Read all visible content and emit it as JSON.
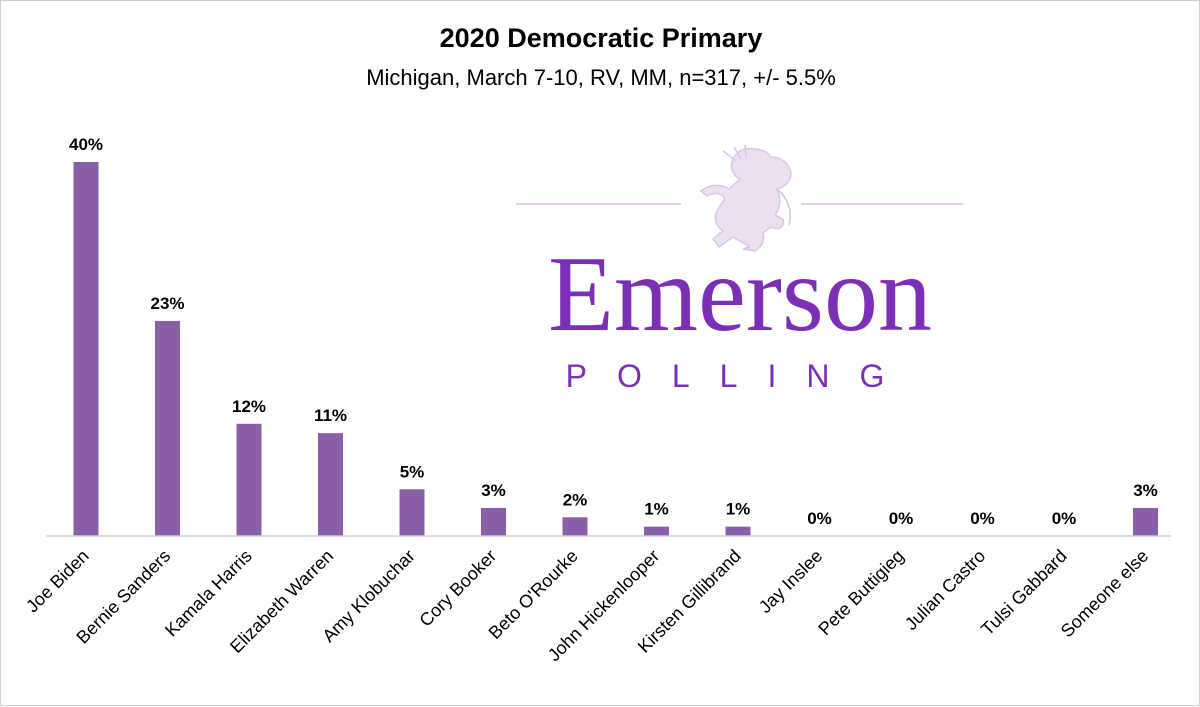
{
  "chart_data": {
    "type": "bar",
    "title": "2020 Democratic Primary",
    "subtitle": "Michigan, March 7-10, RV, MM, n=317, +/- 5.5%",
    "categories": [
      "Joe Biden",
      "Bernie Sanders",
      "Kamala Harris",
      "Elizabeth Warren",
      "Amy Klobuchar",
      "Cory Booker",
      "Beto O'Rourke",
      "John Hickenlooper",
      "Kirsten Gillibrand",
      "Jay Inslee",
      "Pete Buttigieg",
      "Julian Castro",
      "Tulsi Gabbard",
      "Someone else"
    ],
    "values": [
      40,
      23,
      12,
      11,
      5,
      3,
      2,
      1,
      1,
      0,
      0,
      0,
      0,
      3
    ],
    "data_labels": [
      "40%",
      "23%",
      "12%",
      "11%",
      "5%",
      "3%",
      "2%",
      "1%",
      "1%",
      "0%",
      "0%",
      "0%",
      "0%",
      "3%"
    ],
    "ylim": [
      0,
      40
    ],
    "grid": false,
    "legend": "none",
    "bar_color": "#8a5fa8",
    "tick_label_rotation": "-45deg"
  },
  "watermark": {
    "logo_word": "Emerson",
    "logo_sub": "POLLING",
    "logo_icon": "lion-rampant-icon",
    "word_color": "#7b2fb5",
    "sub_color": "#7b2fb5",
    "icon_color": "#e8dcf0",
    "rule_color": "#ddd0e8"
  }
}
